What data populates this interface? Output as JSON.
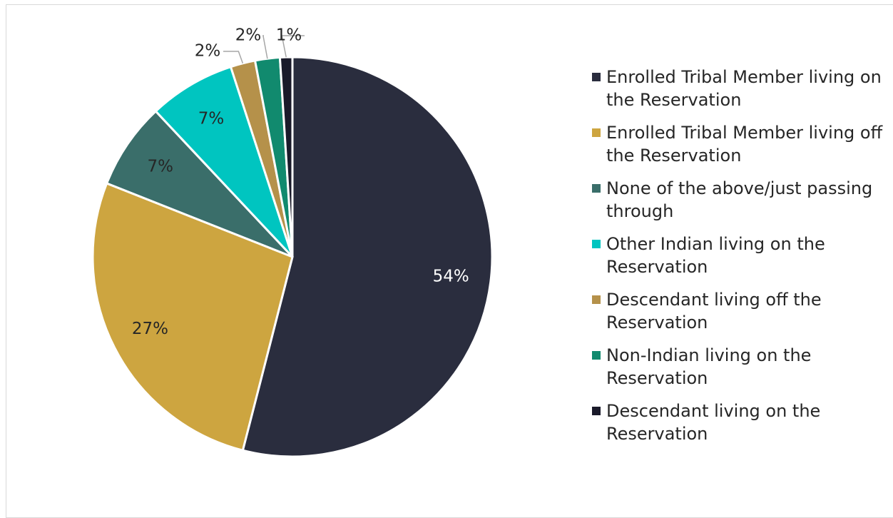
{
  "chart_data": {
    "type": "pie",
    "categories": [
      "Enrolled Tribal Member living on the Reservation",
      "Enrolled Tribal Member living off the Reservation",
      "None of the above/just passing through",
      "Other Indian living on the Reservation",
      "Descendant living off the Reservation",
      "Non-Indian living on the Reservation",
      "Descendant living on the Reservation"
    ],
    "values": [
      54,
      27,
      7,
      7,
      2,
      2,
      1
    ],
    "value_labels": [
      "54%",
      "27%",
      "7%",
      "7%",
      "2%",
      "2%",
      "1%"
    ],
    "colors": [
      "#2a2d3e",
      "#cda540",
      "#3a6e6a",
      "#00c5c0",
      "#b5914a",
      "#118a6e",
      "#1a1a2a"
    ],
    "legend": "right"
  }
}
